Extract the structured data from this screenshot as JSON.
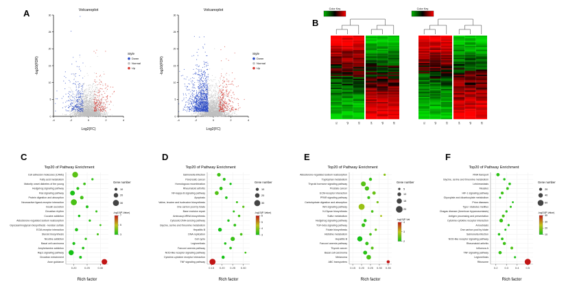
{
  "panels": {
    "A": "A",
    "B": "B",
    "C": "C",
    "D": "D",
    "E": "E",
    "F": "F"
  },
  "chart_data": [
    {
      "id": "volcanoLeft",
      "panel": "A",
      "type": "scatter",
      "subtype": "volcano",
      "title": "Volcanoplot",
      "xlabel": "Log2(FC)",
      "ylabel": "-log10(FDR)",
      "xlim": [
        -4,
        4
      ],
      "ylim": [
        0,
        30
      ],
      "xticks": [
        -4,
        -2,
        0,
        2,
        4
      ],
      "yticks": [
        0,
        5,
        10,
        15,
        20,
        25,
        30
      ],
      "legend_title": "Style",
      "legend": [
        {
          "label": "Down",
          "color": "#2b4bc8"
        },
        {
          "label": "Normal",
          "color": "#bfbfbf"
        },
        {
          "label": "Up",
          "color": "#d73a32"
        }
      ],
      "points": {
        "down": 260,
        "normal": 2400,
        "up": 180
      },
      "seed": 11
    },
    {
      "id": "volcanoRight",
      "panel": "A",
      "type": "scatter",
      "subtype": "volcano",
      "title": "Volcanoplot",
      "xlabel": "Log2(FC)",
      "ylabel": "-log10(FDR)",
      "xlim": [
        -4,
        4
      ],
      "ylim": [
        0,
        30
      ],
      "xticks": [
        -4,
        -2,
        0,
        2,
        4
      ],
      "yticks": [
        0,
        5,
        10,
        15,
        20,
        25,
        30
      ],
      "legend_title": "Style",
      "legend": [
        {
          "label": "Down",
          "color": "#2b4bc8"
        },
        {
          "label": "Normal",
          "color": "#bfbfbf"
        },
        {
          "label": "Up",
          "color": "#d73a32"
        }
      ],
      "points": {
        "down": 1100,
        "normal": 2400,
        "up": 260
      },
      "seed": 22
    },
    {
      "id": "heatmapLeft",
      "panel": "B",
      "type": "heatmap",
      "color_key_title": "Color Key",
      "rows": 64,
      "columns": [
        "s1",
        "s2",
        "s3",
        "s4",
        "s5",
        "s6"
      ],
      "group_split": 3,
      "low_color": "#00b400",
      "mid_color": "#000000",
      "high_color": "#ff0000",
      "seed": 7
    },
    {
      "id": "heatmapRight",
      "panel": "B",
      "type": "heatmap",
      "color_key_title": "Color Key",
      "rows": 64,
      "columns": [
        "s1",
        "s2",
        "s3",
        "s4",
        "s5",
        "s6"
      ],
      "group_split": 3,
      "low_color": "#00b400",
      "mid_color": "#000000",
      "high_color": "#ff0000",
      "seed": 15
    },
    {
      "id": "dotC",
      "panel": "C",
      "type": "scatter",
      "subtype": "dotplot",
      "title": "Top20 of Pathway Enrichment",
      "xlabel": "Rich factor",
      "xlim": [
        0.17,
        0.33
      ],
      "xticks": [
        0.2,
        0.25,
        0.3
      ],
      "xtick_labels": [
        "0.20",
        "0.25",
        "0.30"
      ],
      "categories": [
        "Cell adhesion molecules (CAMs)",
        "Fatty acid metabolism",
        "Maturity onset diabetes of the young",
        "Hedgehog signaling pathway",
        "Ras signaling pathway",
        "Protein digestion and absorption",
        "Neuroactive ligand-receptor interaction",
        "Insulin secretion",
        "Circadian rhythm",
        "Cocaine addiction",
        "Aldosterone-regulated sodium reabsorption",
        "Glycosaminoglycan biosynthesis - keratan sulfate",
        "ECM-receptor interaction",
        "Steroid biosynthesis",
        "Nicotine addiction",
        "Basal cell carcinoma",
        "Amphetamine addiction",
        "Rap1 signaling pathway",
        "Circadian entrainment",
        "Axon guidance"
      ],
      "rich_factor": [
        0.205,
        0.27,
        0.24,
        0.215,
        0.195,
        0.23,
        0.2,
        0.25,
        0.285,
        0.22,
        0.26,
        0.3,
        0.21,
        0.29,
        0.245,
        0.2,
        0.235,
        0.19,
        0.225,
        0.315
      ],
      "gene_number": [
        28,
        6,
        8,
        10,
        22,
        14,
        30,
        9,
        5,
        7,
        6,
        4,
        12,
        5,
        6,
        10,
        8,
        24,
        9,
        27
      ],
      "neg_log10_p": [
        3.5,
        2.8,
        3.0,
        2.7,
        2.5,
        3.1,
        3.2,
        2.6,
        2.9,
        2.5,
        2.7,
        3.0,
        2.6,
        3.1,
        2.8,
        2.5,
        2.6,
        2.4,
        2.5,
        7.8
      ],
      "legend_gene_title": "Gene number",
      "legend_sizes": [
        10,
        20,
        30
      ],
      "legend_p_title": "-log10(P-Value)",
      "legend_p_ticks": [
        3,
        5,
        7
      ]
    },
    {
      "id": "dotD",
      "panel": "D",
      "type": "scatter",
      "subtype": "dotplot",
      "title": "Top20 of Pathway Enrichment",
      "xlabel": "Rich factor",
      "xlim": [
        0.13,
        0.33
      ],
      "xticks": [
        0.15,
        0.2,
        0.25,
        0.3
      ],
      "xtick_labels": [
        "0.15",
        "0.20",
        "0.25",
        "0.30"
      ],
      "categories": [
        "Salmonella infection",
        "Pancreatic cancer",
        "Homologous recombination",
        "Rheumatoid arthritis",
        "NF-kappa B signaling pathway",
        "Apoptosis",
        "Valine, leucine and isoleucine biosynthesis",
        "One carbon pool by folate",
        "Base excision repair",
        "Aminoacyl-tRNA biosynthesis",
        "Cytosolic DNA-sensing pathway",
        "Glycine, serine and threonine metabolism",
        "Hepatitis B",
        "DNA replication",
        "Cell cycle",
        "Legionellosis",
        "Fanconi anemia pathway",
        "NOD-like receptor signaling pathway",
        "Cytokine-cytokine receptor interaction",
        "TNF signaling pathway"
      ],
      "rich_factor": [
        0.185,
        0.21,
        0.24,
        0.195,
        0.175,
        0.22,
        0.27,
        0.3,
        0.255,
        0.28,
        0.23,
        0.26,
        0.19,
        0.29,
        0.25,
        0.215,
        0.24,
        0.31,
        0.205,
        0.155
      ],
      "gene_number": [
        14,
        9,
        5,
        12,
        16,
        7,
        4,
        5,
        4,
        6,
        6,
        8,
        15,
        7,
        18,
        6,
        7,
        3,
        11,
        30
      ],
      "neg_log10_p": [
        3.0,
        2.7,
        2.5,
        2.8,
        3.2,
        2.6,
        2.9,
        3.3,
        2.7,
        3.0,
        2.6,
        2.8,
        2.5,
        3.1,
        2.9,
        2.6,
        2.7,
        3.0,
        2.5,
        6.5
      ],
      "legend_gene_title": "Gene number",
      "legend_sizes": [
        10,
        20,
        30
      ],
      "legend_p_title": "-log10(P-Value)",
      "legend_p_ticks": [
        3,
        4,
        5,
        6
      ]
    },
    {
      "id": "dotE",
      "panel": "E",
      "type": "scatter",
      "subtype": "dotplot",
      "title": "Top20 of Pathway Enrichment",
      "xlabel": "Rich factor",
      "xlim": [
        0.13,
        0.37
      ],
      "xticks": [
        0.15,
        0.2,
        0.25,
        0.3,
        0.35
      ],
      "xtick_labels": [
        "0.15",
        "0.20",
        "0.25",
        "0.30",
        "0.35"
      ],
      "categories": [
        "Aldosterone-regulated sodium reabsorption",
        "Tryptophan metabolism",
        "Thyroid hormone signaling pathway",
        "Prostate cancer",
        "ECM-receptor interaction",
        "PPAR signaling pathway",
        "Carbohydrate digestion and absorption",
        "Wnt signaling pathway",
        "N-Glycan biosynthesis",
        "Sulfur metabolism",
        "Hedgehog signaling pathway",
        "TGF-beta signaling pathway",
        "Folate biosynthesis",
        "Histidine metabolism",
        "Hepatitis B",
        "Fanconi anemia pathway",
        "Thyroid cancer",
        "Basal cell carcinoma",
        "Melanoma",
        "ABC transporters"
      ],
      "rich_factor": [
        0.33,
        0.25,
        0.21,
        0.23,
        0.27,
        0.24,
        0.29,
        0.2,
        0.26,
        0.31,
        0.22,
        0.21,
        0.28,
        0.25,
        0.19,
        0.23,
        0.26,
        0.22,
        0.24,
        0.35
      ],
      "gene_number": [
        5,
        8,
        14,
        12,
        9,
        7,
        5,
        18,
        6,
        4,
        8,
        10,
        5,
        6,
        15,
        9,
        7,
        11,
        13,
        8
      ],
      "neg_log10_p": [
        3.1,
        2.6,
        2.8,
        2.7,
        2.9,
        2.6,
        3.0,
        3.2,
        2.7,
        3.3,
        2.5,
        2.6,
        2.9,
        2.7,
        2.4,
        2.6,
        2.8,
        2.5,
        2.7,
        4.5
      ],
      "legend_gene_title": "Gene number",
      "legend_sizes": [
        5,
        10,
        15,
        20
      ],
      "legend_p_title": "-log10(P-Val",
      "legend_p_ticks": [
        2,
        3,
        4
      ]
    },
    {
      "id": "dotF",
      "panel": "F",
      "type": "scatter",
      "subtype": "dotplot",
      "title": "Top20 of Pathway Enrichment",
      "xlabel": "Rich factor",
      "xlim": [
        0.15,
        0.55
      ],
      "xticks": [
        0.2,
        0.3,
        0.4,
        0.5
      ],
      "xtick_labels": [
        "0.2",
        "0.3",
        "0.4",
        "0.5"
      ],
      "categories": [
        "RNA transport",
        "Glycine, serine and threonine metabolism",
        "Leishmaniasis",
        "Measles",
        "HIF-1 signaling pathway",
        "Glyoxylate and dicarboxylate metabolism",
        "Prion diseases",
        "Type I diabetes mellitus",
        "Chagas disease (American trypanosomiasis)",
        "Antigen processing and presentation",
        "Cytokine-cytokine receptor interaction",
        "Amoebiasis",
        "One carbon pool by folate",
        "Salmonella infection",
        "NOD-like receptor signaling pathway",
        "Rheumatoid arthritis",
        "Influenza A",
        "TNF signaling pathway",
        "Legionellosis",
        "Ribosome"
      ],
      "rich_factor": [
        0.22,
        0.28,
        0.33,
        0.31,
        0.26,
        0.24,
        0.36,
        0.34,
        0.3,
        0.27,
        0.25,
        0.32,
        0.29,
        0.23,
        0.26,
        0.28,
        0.35,
        0.24,
        0.38,
        0.5
      ],
      "gene_number": [
        25,
        12,
        14,
        16,
        20,
        8,
        6,
        9,
        11,
        18,
        30,
        10,
        7,
        13,
        15,
        22,
        17,
        24,
        9,
        62
      ],
      "neg_log10_p": [
        8,
        6,
        7,
        9,
        10,
        5,
        6,
        8,
        7,
        11,
        9,
        6,
        5,
        7,
        8,
        10,
        12,
        9,
        6,
        48
      ],
      "legend_gene_title": "Gene number",
      "legend_sizes": [
        20,
        40,
        60
      ],
      "legend_p_title": "-log10(P-Value)",
      "legend_p_ticks": [
        10,
        20,
        30,
        40
      ]
    }
  ]
}
